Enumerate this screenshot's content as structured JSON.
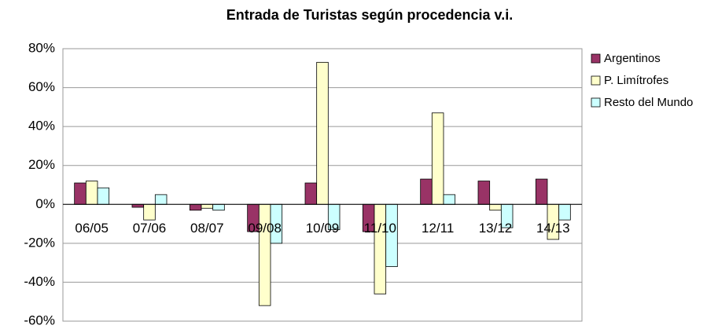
{
  "chart_data": {
    "type": "bar",
    "title": "Entrada de Turistas según procedencia v.i.",
    "categories": [
      "06/05",
      "07/06",
      "08/07",
      "09/08",
      "10/09",
      "11/10",
      "12/11",
      "13/12",
      "14/13"
    ],
    "series": [
      {
        "name": "Argentinos",
        "color": "#993366",
        "values": [
          11,
          -1.5,
          -3,
          -14,
          11,
          -14,
          13,
          12,
          13
        ]
      },
      {
        "name": "P. Limítrofes",
        "color": "#ffffcc",
        "values": [
          12,
          -8,
          -2,
          -52,
          73,
          -46,
          47,
          -3,
          -18
        ]
      },
      {
        "name": "Resto del Mundo",
        "color": "#ccffff",
        "values": [
          8.5,
          5,
          -3,
          -20,
          -13,
          -32,
          5,
          -12,
          -8
        ]
      }
    ],
    "ylim": [
      -60,
      80
    ],
    "yticks": [
      {
        "value": -60,
        "label": "-60%"
      },
      {
        "value": -40,
        "label": "-40%"
      },
      {
        "value": -20,
        "label": "-20%"
      },
      {
        "value": 0,
        "label": "0%"
      },
      {
        "value": 20,
        "label": "20%"
      },
      {
        "value": 40,
        "label": "40%"
      },
      {
        "value": 60,
        "label": "60%"
      },
      {
        "value": 80,
        "label": "80%"
      }
    ],
    "grid": true,
    "legend": "right"
  }
}
